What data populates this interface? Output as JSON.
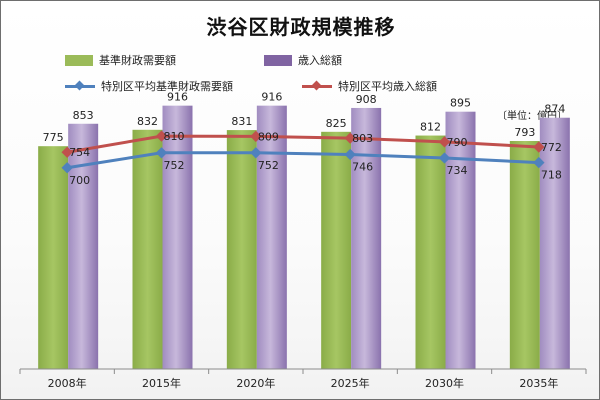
{
  "title": "渋谷区財政規模推移",
  "unit_note": "〔単位：億円〕",
  "colors": {
    "green_bar": "#9bbb59",
    "purple_bar": "#8064a2",
    "blue_line": "#4f81bd",
    "red_line": "#c0504d"
  },
  "legend": [
    {
      "key": "basic",
      "label": "基準財政需要額",
      "kind": "bar",
      "color": "#9bbb59"
    },
    {
      "key": "total",
      "label": "歳入総額",
      "kind": "bar",
      "color": "#8064a2"
    },
    {
      "key": "avg_basic",
      "label": "特別区平均基準財政需要額",
      "kind": "line",
      "color": "#4f81bd"
    },
    {
      "key": "avg_total",
      "label": "特別区平均歳入総額",
      "kind": "line",
      "color": "#c0504d"
    }
  ],
  "chart_data": {
    "type": "bar",
    "title": "渋谷区財政規模推移",
    "xlabel": "",
    "ylabel": "",
    "categories": [
      "2008年",
      "2015年",
      "2020年",
      "2025年",
      "2030年",
      "2035年"
    ],
    "ylim": [
      0,
      1000
    ],
    "grid": false,
    "legend_position": "top",
    "series": [
      {
        "name": "基準財政需要額",
        "type": "bar",
        "values": [
          775,
          832,
          831,
          825,
          812,
          793
        ]
      },
      {
        "name": "歳入総額",
        "type": "bar",
        "values": [
          853,
          916,
          916,
          908,
          895,
          874
        ]
      },
      {
        "name": "特別区平均基準財政需要額",
        "type": "line",
        "values": [
          700,
          752,
          752,
          746,
          734,
          718
        ]
      },
      {
        "name": "特別区平均歳入総額",
        "type": "line",
        "values": [
          754,
          810,
          809,
          803,
          790,
          772
        ]
      }
    ]
  }
}
